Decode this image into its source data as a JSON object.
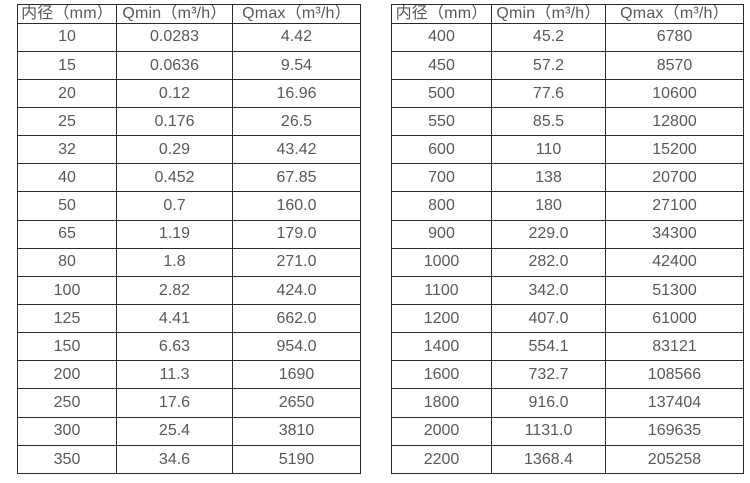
{
  "colors": {
    "background": "#ffffff",
    "border": "#2b2b2b",
    "text": "#595959"
  },
  "tables": {
    "headers": [
      "内径（mm）",
      "Qmin（m³/h）",
      "Qmax（m³/h）"
    ],
    "left": {
      "rows": [
        [
          "10",
          "0.0283",
          "4.42"
        ],
        [
          "15",
          "0.0636",
          "9.54"
        ],
        [
          "20",
          "0.12",
          "16.96"
        ],
        [
          "25",
          "0.176",
          "26.5"
        ],
        [
          "32",
          "0.29",
          "43.42"
        ],
        [
          "40",
          "0.452",
          "67.85"
        ],
        [
          "50",
          "0.7",
          "160.0"
        ],
        [
          "65",
          "1.19",
          "179.0"
        ],
        [
          "80",
          "1.8",
          "271.0"
        ],
        [
          "100",
          "2.82",
          "424.0"
        ],
        [
          "125",
          "4.41",
          "662.0"
        ],
        [
          "150",
          "6.63",
          "954.0"
        ],
        [
          "200",
          "11.3",
          "1690"
        ],
        [
          "250",
          "17.6",
          "2650"
        ],
        [
          "300",
          "25.4",
          "3810"
        ],
        [
          "350",
          "34.6",
          "5190"
        ]
      ]
    },
    "right": {
      "rows": [
        [
          "400",
          "45.2",
          "6780"
        ],
        [
          "450",
          "57.2",
          "8570"
        ],
        [
          "500",
          "77.6",
          "10600"
        ],
        [
          "550",
          "85.5",
          "12800"
        ],
        [
          "600",
          "110",
          "15200"
        ],
        [
          "700",
          "138",
          "20700"
        ],
        [
          "800",
          "180",
          "27100"
        ],
        [
          "900",
          "229.0",
          "34300"
        ],
        [
          "1000",
          "282.0",
          "42400"
        ],
        [
          "1100",
          "342.0",
          "51300"
        ],
        [
          "1200",
          "407.0",
          "61000"
        ],
        [
          "1400",
          "554.1",
          "83121"
        ],
        [
          "1600",
          "732.7",
          "108566"
        ],
        [
          "1800",
          "916.0",
          "137404"
        ],
        [
          "2000",
          "1131.0",
          "169635"
        ],
        [
          "2200",
          "1368.4",
          "205258"
        ]
      ]
    }
  }
}
